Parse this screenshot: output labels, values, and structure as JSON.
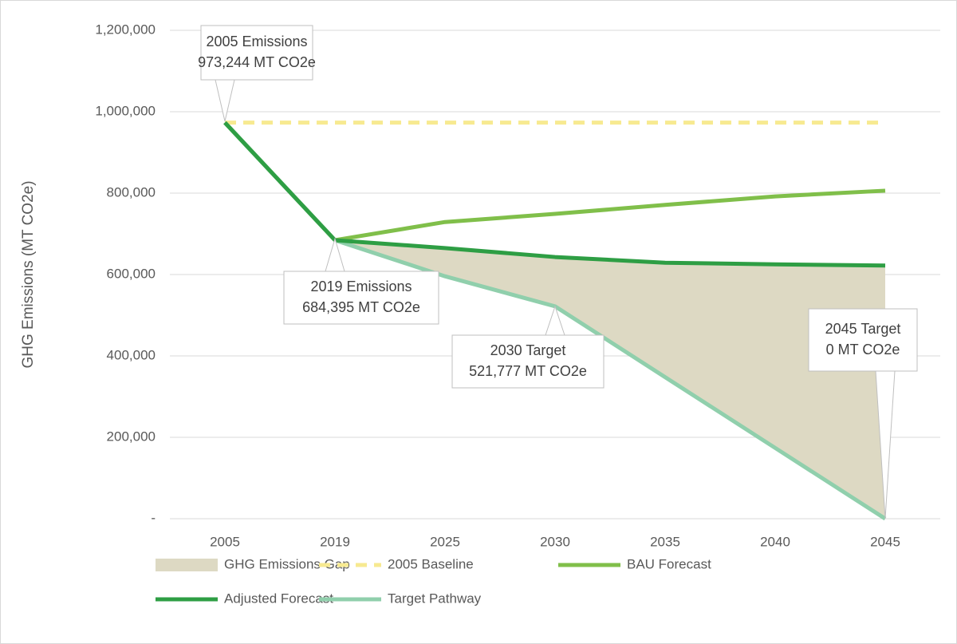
{
  "chart_data": {
    "type": "line",
    "y_label": "GHG Emissions (MT CO2e)",
    "categories": [
      "2005",
      "2019",
      "2025",
      "2030",
      "2035",
      "2040",
      "2045"
    ],
    "ylim": [
      0,
      1200000
    ],
    "yticks": [
      {
        "value": 0,
        "label": "-"
      },
      {
        "value": 200000,
        "label": "200,000"
      },
      {
        "value": 400000,
        "label": "400,000"
      },
      {
        "value": 600000,
        "label": "600,000"
      },
      {
        "value": 800000,
        "label": "800,000"
      },
      {
        "value": 1000000,
        "label": "1,000,000"
      },
      {
        "value": 1200000,
        "label": "1,200,000"
      }
    ],
    "grid": true,
    "series": [
      {
        "name": "GHG Emissions Gap",
        "kind": "area",
        "stacked_on": 4,
        "color": "#ddd9c3",
        "values": [
          null,
          0,
          69304,
          121223,
          281149,
          451074,
          622000
        ]
      },
      {
        "name": "2005 Baseline",
        "kind": "dashed",
        "color": "#f7ea91",
        "values": [
          973244,
          973244,
          973244,
          973244,
          973244,
          973244,
          973244
        ]
      },
      {
        "name": "BAU Forecast",
        "kind": "line",
        "color": "#80bf4a",
        "values": [
          973244,
          684395,
          729000,
          749000,
          771000,
          792000,
          806000
        ]
      },
      {
        "name": "Adjusted Forecast",
        "kind": "line",
        "color": "#2e9e44",
        "values": [
          973244,
          684395,
          665000,
          643000,
          629000,
          625000,
          622000
        ]
      },
      {
        "name": "Target Pathway",
        "kind": "line",
        "color": "#90cfac",
        "values": [
          973244,
          684395,
          595696,
          521777,
          347851,
          173926,
          0
        ]
      }
    ],
    "annotations": [
      {
        "lines": [
          "2005 Emissions",
          "973,244 MT CO2e"
        ]
      },
      {
        "lines": [
          "2019 Emissions",
          "684,395 MT CO2e"
        ]
      },
      {
        "lines": [
          "2030 Target",
          "521,777 MT CO2e"
        ]
      },
      {
        "lines": [
          "2045 Target",
          "0 MT CO2e"
        ]
      }
    ]
  }
}
